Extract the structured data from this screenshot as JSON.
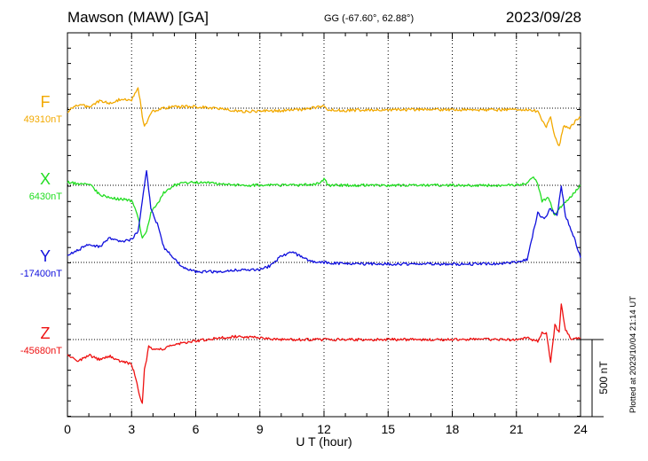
{
  "header": {
    "station": "Mawson (MAW)  [GA]",
    "coords": "GG (-67.60°,  62.88°)",
    "date": "2023/09/28"
  },
  "footer": {
    "plotted_note": "Plotted at 2023/10/04 21:14 UT"
  },
  "chart_data": {
    "type": "line",
    "xlabel": "U T (hour)",
    "xlim": [
      0,
      24
    ],
    "xticks": [
      "0",
      "3",
      "6",
      "9",
      "12",
      "15",
      "18",
      "21",
      "24"
    ],
    "grid": true,
    "scale_bar": {
      "label": "500 nT",
      "nT": 500
    },
    "series": [
      {
        "name": "F",
        "baseline_label": "49310nT",
        "baseline_nT": 49310,
        "color": "#f2a900",
        "x": [
          0,
          0.5,
          1,
          1.5,
          2,
          2.5,
          3,
          3.2,
          3.3,
          3.4,
          3.5,
          3.6,
          3.7,
          3.8,
          4,
          4.5,
          5,
          5.5,
          6,
          7,
          8,
          9,
          10,
          11,
          11.8,
          12,
          12.2,
          13,
          14,
          15,
          16,
          17,
          18,
          19,
          20,
          21,
          21.5,
          22,
          22.2,
          22.4,
          22.6,
          22.8,
          23,
          23.2,
          23.5,
          23.8,
          24
        ],
        "y": [
          -20,
          20,
          10,
          45,
          30,
          60,
          50,
          110,
          130,
          50,
          -50,
          -120,
          -100,
          -60,
          -20,
          0,
          10,
          10,
          10,
          0,
          -20,
          -20,
          -15,
          -10,
          10,
          20,
          -10,
          -15,
          -10,
          -10,
          -10,
          -10,
          -10,
          -10,
          -10,
          -10,
          -10,
          -20,
          -80,
          -120,
          -60,
          -180,
          -250,
          -120,
          -130,
          -80,
          -60
        ]
      },
      {
        "name": "X",
        "baseline_label": "6430nT",
        "baseline_nT": 6430,
        "color": "#22dd22",
        "x": [
          0,
          0.5,
          1,
          1.5,
          2,
          2.5,
          3,
          3.3,
          3.5,
          3.7,
          3.9,
          4.2,
          4.5,
          5,
          5.5,
          6,
          7,
          8,
          9,
          10,
          11,
          11.8,
          12,
          12.2,
          13,
          14,
          15,
          16,
          17,
          18,
          19,
          20,
          21,
          21.5,
          21.8,
          22,
          22.2,
          22.5,
          22.8,
          23,
          23.2,
          23.5,
          24
        ],
        "y": [
          20,
          10,
          10,
          -60,
          -80,
          -90,
          -100,
          -200,
          -350,
          -300,
          -180,
          -120,
          -50,
          0,
          15,
          20,
          10,
          0,
          0,
          0,
          0,
          10,
          40,
          0,
          0,
          0,
          0,
          0,
          0,
          0,
          0,
          0,
          0,
          10,
          60,
          0,
          -100,
          -80,
          -200,
          -150,
          -120,
          -80,
          0
        ]
      },
      {
        "name": "Y",
        "baseline_label": "-17400nT",
        "baseline_nT": -17400,
        "color": "#1010dd",
        "x": [
          0,
          0.5,
          1,
          1.5,
          2,
          2.5,
          3,
          3.3,
          3.5,
          3.7,
          3.9,
          4.2,
          4.5,
          5,
          5.5,
          6,
          7,
          8,
          9,
          9.5,
          10,
          10.5,
          11,
          11.5,
          12,
          13,
          14,
          15,
          16,
          17,
          18,
          19,
          20,
          21,
          21.5,
          21.8,
          22,
          22.3,
          22.6,
          22.9,
          23.1,
          23.3,
          23.6,
          24
        ],
        "y": [
          50,
          80,
          120,
          100,
          160,
          130,
          150,
          200,
          400,
          600,
          350,
          250,
          100,
          20,
          -40,
          -60,
          -60,
          -50,
          -50,
          -20,
          40,
          70,
          30,
          0,
          0,
          -10,
          -10,
          -10,
          -10,
          -10,
          -10,
          -10,
          -10,
          0,
          20,
          200,
          320,
          280,
          350,
          300,
          500,
          300,
          200,
          30
        ]
      },
      {
        "name": "Z",
        "baseline_label": "-45680nT",
        "baseline_nT": -45680,
        "color": "#ee1111",
        "x": [
          0,
          0.5,
          1,
          1.5,
          2,
          2.5,
          3,
          3.2,
          3.4,
          3.5,
          3.6,
          3.7,
          3.8,
          4,
          4.5,
          5,
          5.5,
          6,
          7,
          8,
          9,
          10,
          11,
          12,
          13,
          14,
          15,
          16,
          17,
          18,
          19,
          20,
          21,
          21.5,
          22,
          22.2,
          22.4,
          22.6,
          22.8,
          23,
          23.1,
          23.3,
          23.6,
          24
        ],
        "y": [
          -100,
          -140,
          -100,
          -130,
          -110,
          -140,
          -160,
          -250,
          -380,
          -420,
          -200,
          -130,
          -40,
          -60,
          -60,
          -30,
          -20,
          -10,
          10,
          20,
          10,
          0,
          0,
          0,
          0,
          0,
          0,
          0,
          0,
          0,
          0,
          0,
          0,
          10,
          -10,
          40,
          40,
          -150,
          90,
          50,
          230,
          60,
          0,
          10
        ]
      }
    ]
  }
}
